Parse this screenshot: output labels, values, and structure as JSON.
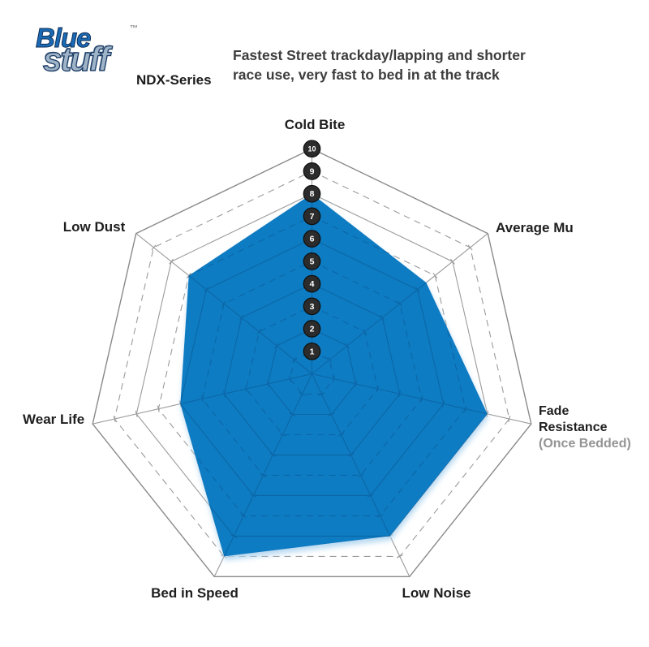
{
  "logo": {
    "blue": "Blue",
    "stuff": "stuff",
    "tm": "™",
    "series": "NDX-Series"
  },
  "header": {
    "line1": "Fastest Street trackday/lapping and shorter",
    "line2": "race use, very fast to bed in at the track"
  },
  "labels": {
    "cold_bite": "Cold Bite",
    "average_mu": "Average Mu",
    "fade_line1": "Fade",
    "fade_line2": "Resistance",
    "fade_line3": "(Once Bedded)",
    "low_noise": "Low Noise",
    "bed_in_speed": "Bed in Speed",
    "wear_life": "Wear Life",
    "low_dust": "Low Dust"
  },
  "chart_data": {
    "type": "radar",
    "categories": [
      "Cold Bite",
      "Average Mu",
      "Fade Resistance (Once Bedded)",
      "Low Noise",
      "Bed in Speed",
      "Wear Life",
      "Low Dust"
    ],
    "values": [
      8,
      6.5,
      8,
      8,
      9,
      6,
      7
    ],
    "scale_min": 0,
    "scale_max": 10,
    "scale_ticks": [
      "1",
      "2",
      "3",
      "4",
      "5",
      "6",
      "7",
      "8",
      "9",
      "10"
    ],
    "title": "Bluestuff NDX-Series performance radar",
    "legend": "none",
    "grid": "heptagon rings 1-10, solid on even values, dashed on odd values",
    "fill_color": "#0e7cc2",
    "grid_color": "#9b9b9b",
    "outer_ring_color": "#8a8a8a",
    "grid_over_fill_color": "#0d5591",
    "shadow_color": "#aad2ee",
    "tick_circle_color": "#2c2c2c",
    "tick_circle_edge_color": "#111111",
    "tick_text_color": "#ffffff"
  }
}
